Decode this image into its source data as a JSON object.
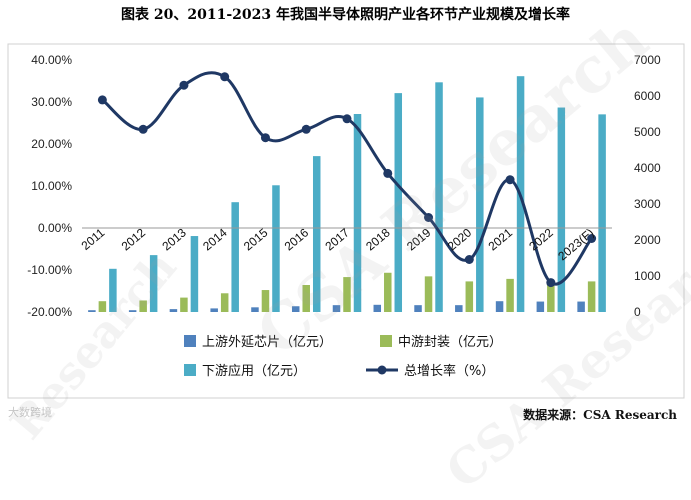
{
  "title": "图表 20、2011-2023 年我国半导体照明产业各环节产业规模及增长率",
  "source": "数据来源：CSA Research",
  "watermarks": [
    "CSA Research",
    "CSA Research",
    "Research",
    "大数跨境"
  ],
  "chart_data": {
    "type": "bar",
    "categories": [
      "2011",
      "2012",
      "2013",
      "2014",
      "2015",
      "2016",
      "2017",
      "2018",
      "2019",
      "2020",
      "2021",
      "2022",
      "2023(F)"
    ],
    "series": [
      {
        "name": "上游外延芯片（亿元）",
        "type": "bar",
        "axis": "right",
        "color": "#4f81bd",
        "values": [
          50,
          50,
          80,
          100,
          130,
          160,
          190,
          200,
          190,
          190,
          300,
          290,
          290
        ]
      },
      {
        "name": "中游封装（亿元）",
        "type": "bar",
        "axis": "right",
        "color": "#9bbb59",
        "values": [
          300,
          320,
          400,
          520,
          610,
          750,
          970,
          1090,
          990,
          850,
          920,
          870,
          850
        ]
      },
      {
        "name": "下游应用（亿元）",
        "type": "bar",
        "axis": "right",
        "color": "#4bacc6",
        "values": [
          1200,
          1580,
          2110,
          3050,
          3520,
          4330,
          5500,
          6080,
          6380,
          5960,
          6550,
          5680,
          5490
        ]
      },
      {
        "name": "总增长率（%）",
        "type": "line",
        "axis": "left",
        "color": "#1f3864",
        "values": [
          30.5,
          23.5,
          34.0,
          36.0,
          21.5,
          23.5,
          26.0,
          13.0,
          2.5,
          -7.5,
          11.5,
          -13.0,
          -2.5
        ]
      }
    ],
    "y_left": {
      "min": -20,
      "max": 40,
      "step": 10,
      "tick_format": "percent_2dp"
    },
    "y_right": {
      "min": 0,
      "max": 7000,
      "step": 1000
    },
    "legend_position": "bottom",
    "grid": false
  }
}
